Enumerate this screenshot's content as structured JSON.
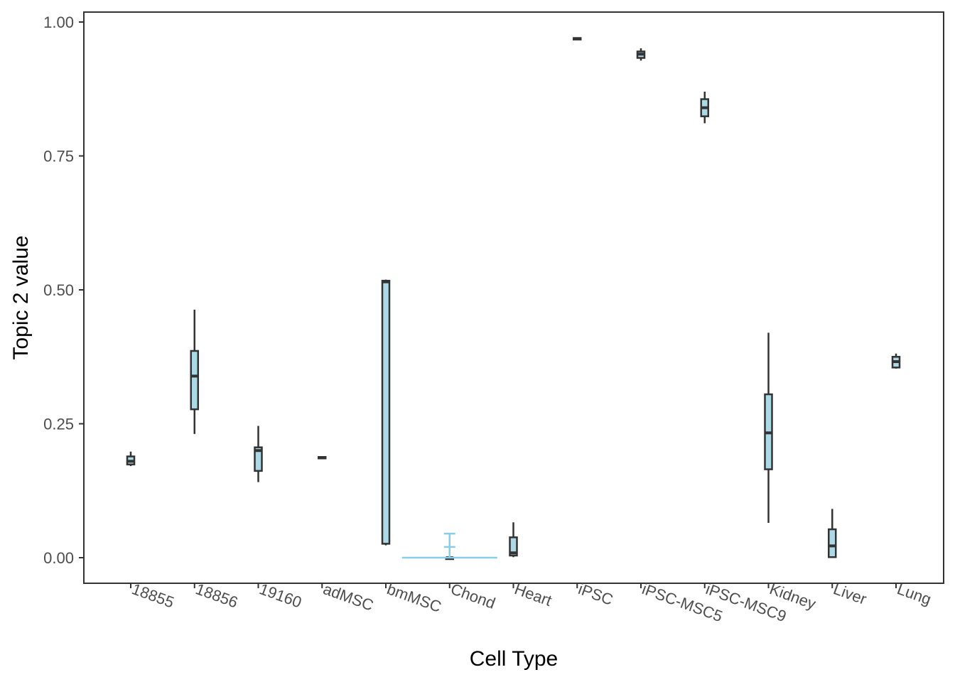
{
  "chart_data": {
    "type": "boxplot",
    "title": "",
    "xlabel": "Cell Type",
    "ylabel": "Topic 2 value",
    "ylim": [
      -0.05,
      1.02
    ],
    "yticks": [
      0.0,
      0.25,
      0.5,
      0.75,
      1.0
    ],
    "ytick_labels": [
      "0.00",
      "0.25",
      "0.50",
      "0.75",
      "1.00"
    ],
    "categories": [
      "18855",
      "18856",
      "19160",
      "adMSC",
      "bmMSC",
      "Chond",
      "Heart",
      "iPSC",
      "iPSC-MSC5",
      "iPSC-MSC9",
      "Kidney",
      "Liver",
      "Lung"
    ],
    "boxes": [
      {
        "category": "18855",
        "min": 0.171,
        "q1": 0.174,
        "median": 0.18,
        "q3": 0.189,
        "max": 0.198
      },
      {
        "category": "18856",
        "min": 0.231,
        "q1": 0.277,
        "median": 0.339,
        "q3": 0.386,
        "max": 0.463
      },
      {
        "category": "19160",
        "min": 0.141,
        "q1": 0.162,
        "median": 0.2,
        "q3": 0.206,
        "max": 0.246
      },
      {
        "category": "adMSC",
        "min": 0.186,
        "q1": 0.186,
        "median": 0.187,
        "q3": 0.188,
        "max": 0.188
      },
      {
        "category": "bmMSC",
        "min": 0.023,
        "q1": 0.026,
        "median": 0.515,
        "q3": 0.517,
        "max": 0.519
      },
      {
        "category": "Chond",
        "min": 0.0,
        "q1": 0.0,
        "median": 0.0,
        "q3": 0.0,
        "max": 0.0
      },
      {
        "category": "Heart",
        "min": 0.001,
        "q1": 0.004,
        "median": 0.009,
        "q3": 0.038,
        "max": 0.066
      },
      {
        "category": "iPSC",
        "min": 0.969,
        "q1": 0.969,
        "median": 0.969,
        "q3": 0.97,
        "max": 0.97
      },
      {
        "category": "iPSC-MSC5",
        "min": 0.928,
        "q1": 0.933,
        "median": 0.94,
        "q3": 0.945,
        "max": 0.951
      },
      {
        "category": "iPSC-MSC9",
        "min": 0.811,
        "q1": 0.824,
        "median": 0.84,
        "q3": 0.856,
        "max": 0.87
      },
      {
        "category": "Kidney",
        "min": 0.065,
        "q1": 0.165,
        "median": 0.233,
        "q3": 0.305,
        "max": 0.42
      },
      {
        "category": "Liver",
        "min": 0.001,
        "q1": 0.001,
        "median": 0.022,
        "q3": 0.053,
        "max": 0.091
      },
      {
        "category": "Lung",
        "min": 0.353,
        "q1": 0.355,
        "median": 0.366,
        "q3": 0.375,
        "max": 0.381
      }
    ],
    "chond_overlay": {
      "category": "Chond",
      "mean": 0.02,
      "upper": 0.045,
      "lower": 0.0
    },
    "colors": {
      "box_fill": "#add8e6",
      "box_edge": "#333333",
      "overlay": "#87ceeb",
      "panel_border": "#333333",
      "tick_text": "#4d4d4d"
    }
  }
}
